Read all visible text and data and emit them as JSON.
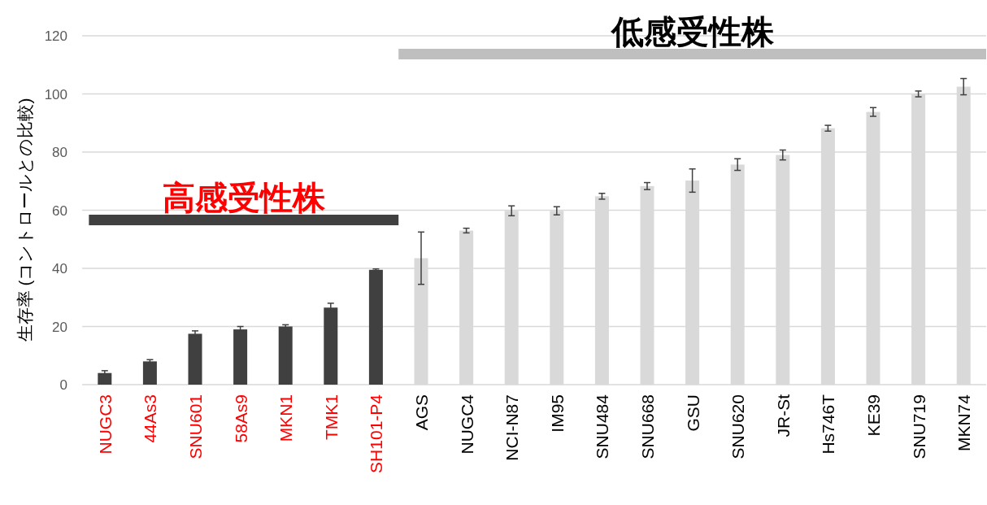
{
  "chart_data": {
    "type": "bar",
    "ylabel": "生存率 (コントロールとの比較)",
    "categories": [
      "NUGC3",
      "44As3",
      "SNU601",
      "58As9",
      "MKN1",
      "TMK1",
      "SH101-P4",
      "AGS",
      "NUGC4",
      "NCI-N87",
      "IM95",
      "SNU484",
      "SNU668",
      "GSU",
      "SNU620",
      "JR-St",
      "Hs746T",
      "KE39",
      "SNU719",
      "MKN74"
    ],
    "series": [
      {
        "color": "#404040",
        "values": [
          4,
          8,
          17.5,
          19,
          20,
          26.5,
          39.5,
          null,
          null,
          null,
          null,
          null,
          null,
          null,
          null,
          null,
          null,
          null,
          null,
          null
        ],
        "errors": [
          0.8,
          0.6,
          1,
          1,
          0.6,
          1.5,
          0.3,
          null,
          null,
          null,
          null,
          null,
          null,
          null,
          null,
          null,
          null,
          null,
          null,
          null
        ]
      },
      {
        "color": "#d9d9d9",
        "values": [
          null,
          null,
          null,
          null,
          null,
          null,
          null,
          43.5,
          53,
          59.8,
          59.8,
          64.8,
          68.3,
          70.2,
          75.7,
          79,
          88.2,
          93.8,
          100,
          102.5
        ],
        "errors": [
          null,
          null,
          null,
          null,
          null,
          null,
          null,
          9,
          0.8,
          1.7,
          1.4,
          1,
          1.2,
          4,
          2,
          1.7,
          1,
          1.5,
          1,
          2.8
        ]
      }
    ],
    "ylim": [
      0,
      120
    ],
    "yticks": [
      0,
      20,
      40,
      60,
      80,
      100,
      120
    ],
    "grid": "y",
    "annotations": [
      "高感受性株",
      "低感受性株"
    ]
  }
}
